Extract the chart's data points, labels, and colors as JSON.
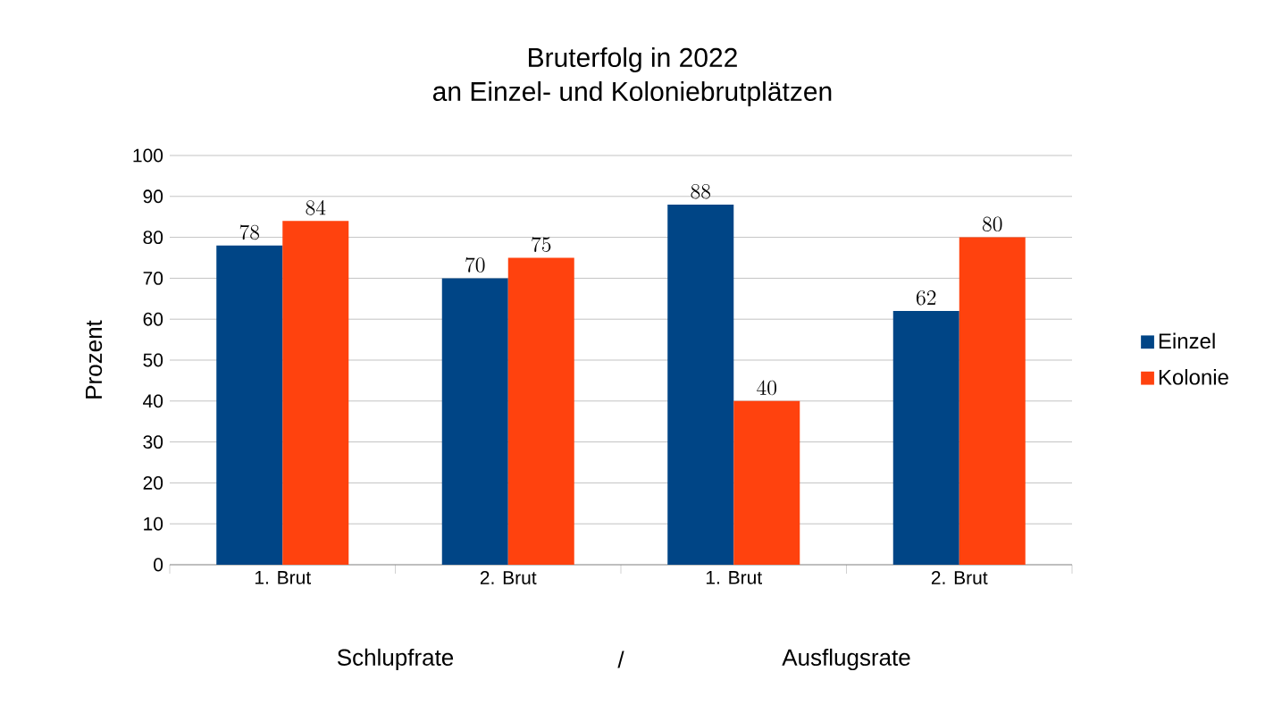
{
  "chart_data": {
    "type": "bar",
    "title": "Bruterfolg in 2022",
    "subtitle": "an Einzel- und Koloniebrutplätzen",
    "ylabel": "Prozent",
    "annotations": [
      "Schlupfrate",
      "/",
      "Ausflugsrate"
    ],
    "categories": [
      "1. Brut",
      "2. Brut",
      "1. Brut",
      "2. Brut"
    ],
    "series": [
      {
        "name": "Einzel",
        "color": "#004586",
        "values": [
          78,
          70,
          88,
          62
        ]
      },
      {
        "name": "Kolonie",
        "color": "#ff420e",
        "values": [
          84,
          75,
          40,
          80
        ]
      }
    ],
    "ylim": [
      0,
      100
    ],
    "yticks": [
      0,
      10,
      20,
      30,
      40,
      50,
      60,
      70,
      80,
      90,
      100
    ],
    "grid": "y",
    "legend": "right",
    "data_labels": true
  }
}
